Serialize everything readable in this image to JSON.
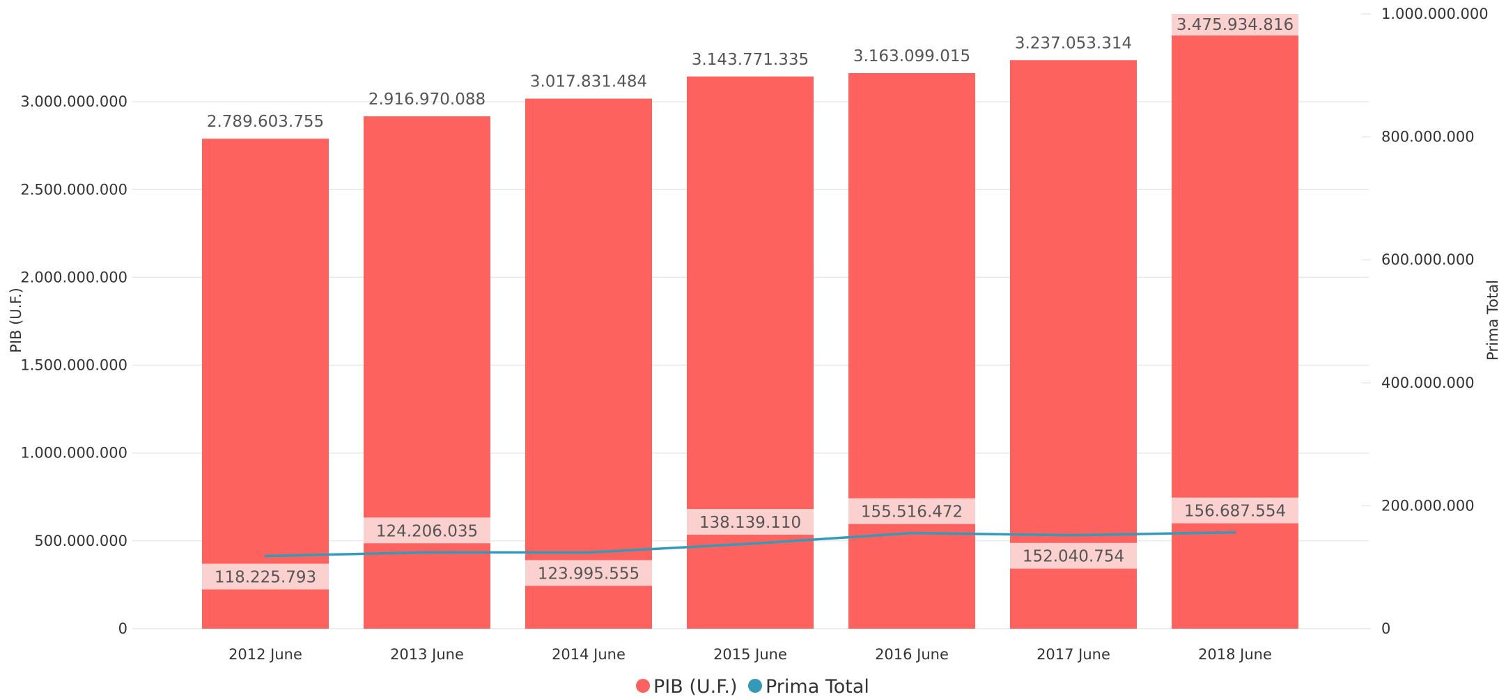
{
  "chart_data": {
    "type": "bar",
    "categories": [
      "2012 June",
      "2013 June",
      "2014 June",
      "2015 June",
      "2016 June",
      "2017 June",
      "2018 June"
    ],
    "series": [
      {
        "name": "PIB (U.F.)",
        "type": "bar",
        "axis": "left",
        "color": "#fd625e",
        "values": [
          2789603755,
          2916970088,
          3017831484,
          3143771335,
          3163099015,
          3237053314,
          3475934816
        ],
        "labels": [
          "2.789.603.755",
          "2.916.970.088",
          "3.017.831.484",
          "3.143.771.335",
          "3.163.099.015",
          "3.237.053.314",
          "3.475.934.816"
        ]
      },
      {
        "name": "Prima Total",
        "type": "line",
        "axis": "right",
        "color": "#3599b8",
        "values": [
          118225793,
          124206035,
          123995555,
          138139110,
          155516472,
          152040754,
          156687554
        ],
        "labels": [
          "118.225.793",
          "124.206.035",
          "123.995.555",
          "138.139.110",
          "155.516.472",
          "152.040.754",
          "156.687.554"
        ]
      }
    ],
    "ylabel": "PIB (U.F.)",
    "y2label": "Prima Total",
    "ylim": [
      0,
      3500000000
    ],
    "y2lim": [
      0,
      1000000000
    ],
    "yticks": [
      0,
      500000000,
      1000000000,
      1500000000,
      2000000000,
      2500000000,
      3000000000
    ],
    "yticklabels": [
      "0",
      "500.000.000",
      "1.000.000.000",
      "1.500.000.000",
      "2.000.000.000",
      "2.500.000.000",
      "3.000.000.000"
    ],
    "y2ticks": [
      0,
      200000000,
      400000000,
      600000000,
      800000000,
      1000000000
    ],
    "y2ticklabels": [
      "0",
      "200.000.000",
      "400.000.000",
      "600.000.000",
      "800.000.000",
      "1.000.000.000"
    ],
    "grid": true,
    "legend": {
      "position": "bottom-center",
      "entries": [
        {
          "label": "PIB (U.F.)",
          "color": "#fd625e"
        },
        {
          "label": "Prima Total",
          "color": "#3599b8"
        }
      ]
    }
  }
}
